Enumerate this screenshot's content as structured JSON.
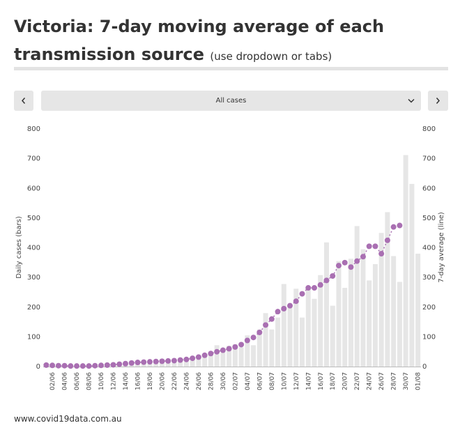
{
  "header": {
    "title": "Victoria: 7-day moving average of each transmission source",
    "subtitle": "(use dropdown or tabs)"
  },
  "dropdown": {
    "selected": "All cases"
  },
  "footer": "www.covid19data.com.au",
  "chart_data": {
    "type": "bar_line",
    "y_label": "Daily cases (bars)",
    "y2_label": "7-day average (line)",
    "categories": [
      null,
      "02/06",
      null,
      "04/06",
      null,
      "06/06",
      null,
      "08/06",
      null,
      "10/06",
      null,
      "12/06",
      null,
      "14/06",
      null,
      "16/06",
      null,
      "18/06",
      null,
      "20/06",
      null,
      "22/06",
      null,
      "24/06",
      null,
      "26/06",
      null,
      "28/06",
      null,
      "30/06",
      null,
      "02/07",
      null,
      "04/07",
      null,
      "06/07",
      null,
      "08/07",
      null,
      "10/07",
      null,
      "12/07",
      null,
      "14/07",
      null,
      "16/07",
      null,
      "18/07",
      null,
      "20/07",
      null,
      "22/07",
      null,
      "24/07",
      null,
      "26/07",
      null,
      "28/07",
      null,
      "30/07",
      null,
      "01/08"
    ],
    "series": [
      {
        "type": "bar",
        "color": "#e6e6e6",
        "values": [
          5,
          3,
          2,
          6,
          3,
          4,
          4,
          6,
          7,
          3,
          9,
          8,
          13,
          10,
          20,
          12,
          20,
          18,
          14,
          26,
          21,
          19,
          17,
          16,
          32,
          30,
          41,
          48,
          72,
          62,
          70,
          75,
          65,
          105,
          72,
          125,
          180,
          125,
          165,
          278,
          208,
          262,
          165,
          262,
          228,
          308,
          418,
          205,
          355,
          265,
          363,
          473,
          395,
          290,
          345,
          450,
          520,
          372,
          285,
          712,
          615,
          380
        ]
      },
      {
        "type": "line",
        "axis": "y2",
        "color": "#a96fb2",
        "values": [
          5,
          4,
          3,
          3,
          2,
          2,
          2,
          2,
          3,
          4,
          5,
          6,
          8,
          10,
          12,
          14,
          15,
          16,
          17,
          18,
          19,
          20,
          22,
          24,
          28,
          32,
          38,
          44,
          50,
          55,
          60,
          66,
          74,
          88,
          98,
          115,
          140,
          160,
          185,
          195,
          205,
          220,
          245,
          265,
          265,
          275,
          290,
          305,
          340,
          350,
          335,
          355,
          370,
          405,
          405,
          380,
          425,
          470,
          475,
          null,
          null,
          null
        ]
      }
    ],
    "ylim": [
      0,
      800
    ],
    "yticks": [
      0,
      100,
      200,
      300,
      400,
      500,
      600,
      700,
      800
    ],
    "y2lim": [
      0,
      800
    ],
    "y2ticks": [
      0,
      100,
      200,
      300,
      400,
      500,
      600,
      700,
      800
    ],
    "grid": false
  }
}
